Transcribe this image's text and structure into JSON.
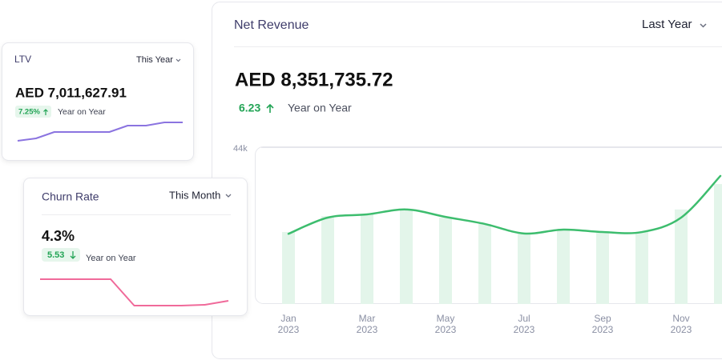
{
  "net_revenue": {
    "title": "Net Revenue",
    "period": "Last Year",
    "amount": "AED 8,351,735.72",
    "change": "6.23",
    "change_label": "Year on Year",
    "chart": {
      "type": "line",
      "categories": [
        [
          "Jan",
          "2023"
        ],
        null,
        [
          "Mar",
          "2023"
        ],
        null,
        [
          "May",
          "2023"
        ],
        null,
        [
          "Jul",
          "2023"
        ],
        null,
        [
          "Sep",
          "2023"
        ],
        null,
        [
          "Nov",
          "2023"
        ],
        null
      ],
      "series": [
        {
          "type": "bar",
          "color": "#e3f5ea",
          "values": [
            20400,
            24900,
            25400,
            26800,
            24500,
            22700,
            20000,
            21100,
            20400,
            20400,
            26800,
            34000
          ]
        },
        {
          "type": "line",
          "color": "#3dbd6e",
          "values": [
            19900,
            24500,
            25400,
            26800,
            24700,
            22700,
            20000,
            21100,
            20400,
            20400,
            24500,
            36300
          ]
        }
      ],
      "ylim": [
        0,
        44000
      ],
      "yticks": [
        {
          "value": 44000,
          "label": "44k"
        }
      ]
    }
  },
  "ltv": {
    "title": "LTV",
    "period": "This Year",
    "amount": "AED 7,011,627.91",
    "change": "7.25%",
    "change_label": "Year on Year",
    "chart": {
      "type": "line",
      "color": "#8b74e0",
      "values": [
        0,
        3,
        11,
        11,
        11,
        11,
        19,
        19,
        23,
        23
      ]
    }
  },
  "churn": {
    "title": "Churn Rate",
    "period": "This Month",
    "amount": "4.3%",
    "change": "5.53",
    "change_label": "Year on Year",
    "chart": {
      "type": "line",
      "color": "#f06a9a",
      "values": [
        33,
        33,
        33,
        33,
        0,
        0,
        0,
        1,
        6
      ]
    }
  }
}
